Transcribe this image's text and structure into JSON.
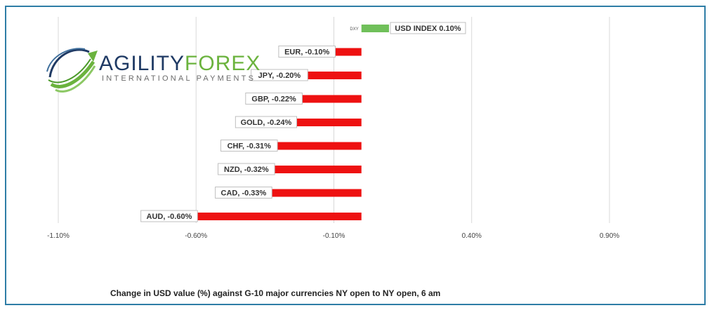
{
  "logo": {
    "brand_part1": "AGILITY",
    "brand_part2": "FOREX",
    "tagline": "INTERNATIONAL PAYMENTS"
  },
  "caption": "Change in  USD value (%)  against  G-10 major currencies NY open to NY open, 6 am",
  "chart_data": {
    "type": "bar",
    "orientation": "horizontal",
    "categories": [
      "DXY",
      "EUR",
      "JPY",
      "GBP",
      "GOLD",
      "CHF",
      "NZD",
      "CAD",
      "AUD"
    ],
    "values": [
      0.1,
      -0.1,
      -0.2,
      -0.22,
      -0.24,
      -0.31,
      -0.32,
      -0.33,
      -0.6
    ],
    "data_labels": [
      "USD INDEX 0.10%",
      "EUR, -0.10%",
      "JPY, -0.20%",
      "GBP, -0.22%",
      "GOLD, -0.24%",
      "CHF, -0.31%",
      "NZD, -0.32%",
      "CAD, -0.33%",
      "AUD, -0.60%"
    ],
    "inline_labels": [
      "DXY",
      "",
      "",
      "",
      "",
      "",
      "",
      "",
      ""
    ],
    "xlim": [
      -1.1,
      0.9
    ],
    "xticks": [
      -1.1,
      -0.6,
      -0.1,
      0.4,
      0.9
    ],
    "xtick_labels": [
      "-1.10%",
      "-0.60%",
      "-0.10%",
      "0.40%",
      "0.90%"
    ],
    "grid": true,
    "colors": {
      "positive": "#70c05a",
      "negative": "#ee1111",
      "grid": "#d9d9d9",
      "label_border": "#bfbfbf"
    }
  }
}
